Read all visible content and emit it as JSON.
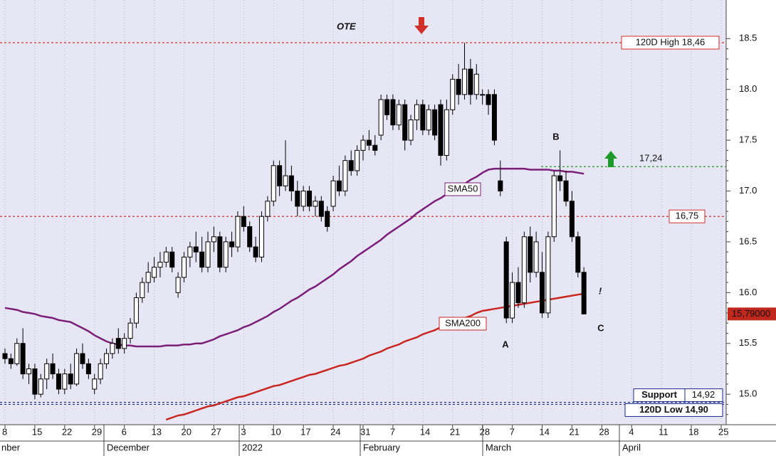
{
  "chart_data": {
    "type": "candlestick",
    "background": "#e6e6f5",
    "categories": [
      "8",
      null,
      null,
      null,
      null,
      "15",
      null,
      null,
      null,
      null,
      "22",
      null,
      null,
      null,
      null,
      "29",
      null,
      null,
      null,
      null,
      "6",
      null,
      null,
      null,
      null,
      "13",
      null,
      null,
      null,
      null,
      "20",
      null,
      null,
      null,
      null,
      "27",
      null,
      null,
      null,
      null,
      "3",
      null,
      null,
      null,
      null,
      "10",
      null,
      null,
      null,
      null,
      "17",
      null,
      null,
      null,
      null,
      "24",
      null,
      null,
      null,
      null,
      "31",
      null,
      null,
      null,
      null,
      "7",
      null,
      null,
      null,
      null,
      "14",
      null,
      null,
      null,
      null,
      "21",
      null,
      null,
      null,
      null,
      "28",
      null,
      null,
      null,
      null,
      "7",
      null,
      null,
      null,
      null,
      "14",
      null,
      null,
      null,
      null,
      "21",
      null,
      null,
      null,
      null,
      "28",
      null,
      null,
      null,
      null,
      "4",
      null,
      null,
      null,
      null,
      "11",
      null,
      null,
      null,
      null,
      "18",
      null,
      null,
      null,
      null,
      "25"
    ],
    "months": [
      "nber",
      "December",
      "2022",
      "February",
      "March",
      "April"
    ],
    "ohlc": [
      [
        15.4,
        15.45,
        15.3,
        15.35
      ],
      [
        15.35,
        15.4,
        15.25,
        15.3
      ],
      [
        15.3,
        15.55,
        15.28,
        15.5
      ],
      [
        15.5,
        15.65,
        15.15,
        15.2
      ],
      [
        15.2,
        15.3,
        15.1,
        15.25
      ],
      [
        15.25,
        15.3,
        14.95,
        15.0
      ],
      [
        15.0,
        15.2,
        14.97,
        15.15
      ],
      [
        15.15,
        15.35,
        15.05,
        15.3
      ],
      [
        15.3,
        15.4,
        15.15,
        15.2
      ],
      [
        15.2,
        15.25,
        15.0,
        15.05
      ],
      [
        15.05,
        15.25,
        15.0,
        15.2
      ],
      [
        15.2,
        15.3,
        15.05,
        15.1
      ],
      [
        15.1,
        15.45,
        15.08,
        15.4
      ],
      [
        15.4,
        15.5,
        15.25,
        15.3
      ],
      [
        15.3,
        15.35,
        15.15,
        15.2
      ],
      [
        15.05,
        15.2,
        15.0,
        15.15
      ],
      [
        15.15,
        15.35,
        15.1,
        15.3
      ],
      [
        15.3,
        15.45,
        15.25,
        15.4
      ],
      [
        15.4,
        15.55,
        15.35,
        15.5
      ],
      [
        15.55,
        15.65,
        15.4,
        15.45
      ],
      [
        15.45,
        15.6,
        15.4,
        15.55
      ],
      [
        15.55,
        15.75,
        15.5,
        15.7
      ],
      [
        15.7,
        16.0,
        15.65,
        15.95
      ],
      [
        15.95,
        16.15,
        15.9,
        16.1
      ],
      [
        16.1,
        16.3,
        16.0,
        16.2
      ],
      [
        16.15,
        16.35,
        16.1,
        16.25
      ],
      [
        16.25,
        16.4,
        16.15,
        16.3
      ],
      [
        16.3,
        16.45,
        16.25,
        16.4
      ],
      [
        16.4,
        16.45,
        16.2,
        16.25
      ],
      [
        16.0,
        16.2,
        15.95,
        16.15
      ],
      [
        16.15,
        16.4,
        16.1,
        16.35
      ],
      [
        16.35,
        16.5,
        16.25,
        16.45
      ],
      [
        16.45,
        16.6,
        16.3,
        16.4
      ],
      [
        16.4,
        16.55,
        16.2,
        16.25
      ],
      [
        16.25,
        16.6,
        16.2,
        16.5
      ],
      [
        16.5,
        16.65,
        16.4,
        16.55
      ],
      [
        16.55,
        16.6,
        16.2,
        16.25
      ],
      [
        16.25,
        16.55,
        16.2,
        16.5
      ],
      [
        16.5,
        16.6,
        16.35,
        16.45
      ],
      [
        16.45,
        16.8,
        16.4,
        16.75
      ],
      [
        16.75,
        16.85,
        16.6,
        16.65
      ],
      [
        16.65,
        16.7,
        16.4,
        16.45
      ],
      [
        16.45,
        16.55,
        16.3,
        16.35
      ],
      [
        16.35,
        16.8,
        16.3,
        16.75
      ],
      [
        16.75,
        16.95,
        16.7,
        16.9
      ],
      [
        16.9,
        17.3,
        16.85,
        17.25
      ],
      [
        17.25,
        17.3,
        16.95,
        17.05
      ],
      [
        17.05,
        17.5,
        17.0,
        17.15
      ],
      [
        17.15,
        17.25,
        16.9,
        17.0
      ],
      [
        17.0,
        17.1,
        16.75,
        16.85
      ],
      [
        16.85,
        17.05,
        16.8,
        17.0
      ],
      [
        17.0,
        17.05,
        16.8,
        16.85
      ],
      [
        16.85,
        16.95,
        16.75,
        16.9
      ],
      [
        16.9,
        16.95,
        16.7,
        16.75
      ],
      [
        16.8,
        16.85,
        16.6,
        16.65
      ],
      [
        16.85,
        17.15,
        16.8,
        17.1
      ],
      [
        17.1,
        17.25,
        16.95,
        17.0
      ],
      [
        17.0,
        17.35,
        16.95,
        17.3
      ],
      [
        17.3,
        17.4,
        17.15,
        17.2
      ],
      [
        17.2,
        17.45,
        17.15,
        17.4
      ],
      [
        17.4,
        17.55,
        17.3,
        17.5
      ],
      [
        17.5,
        17.6,
        17.4,
        17.45
      ],
      [
        17.45,
        17.55,
        17.35,
        17.4
      ],
      [
        17.55,
        17.95,
        17.5,
        17.9
      ],
      [
        17.9,
        17.95,
        17.7,
        17.75
      ],
      [
        17.9,
        17.95,
        17.6,
        17.65
      ],
      [
        17.65,
        17.9,
        17.6,
        17.85
      ],
      [
        17.85,
        17.9,
        17.4,
        17.5
      ],
      [
        17.5,
        17.75,
        17.45,
        17.7
      ],
      [
        17.7,
        17.9,
        17.6,
        17.85
      ],
      [
        17.85,
        17.9,
        17.55,
        17.6
      ],
      [
        17.6,
        17.85,
        17.55,
        17.8
      ],
      [
        17.8,
        17.85,
        17.5,
        17.55
      ],
      [
        17.85,
        17.9,
        17.25,
        17.35
      ],
      [
        17.35,
        17.9,
        17.3,
        17.8
      ],
      [
        17.8,
        18.15,
        17.75,
        18.1
      ],
      [
        18.1,
        18.25,
        17.85,
        17.95
      ],
      [
        17.95,
        18.46,
        17.9,
        18.2
      ],
      [
        18.2,
        18.3,
        17.85,
        17.95
      ],
      [
        17.95,
        18.25,
        17.9,
        18.15
      ],
      [
        17.95,
        18.0,
        17.85,
        17.95
      ],
      [
        17.95,
        18.0,
        17.75,
        17.85
      ],
      [
        17.95,
        18.0,
        17.45,
        17.5
      ],
      [
        17.1,
        17.3,
        16.95,
        17.0
      ],
      [
        16.5,
        16.55,
        15.7,
        15.75
      ],
      [
        15.75,
        16.2,
        15.7,
        16.1
      ],
      [
        16.1,
        16.25,
        15.85,
        15.9
      ],
      [
        15.9,
        16.6,
        15.85,
        16.55
      ],
      [
        16.55,
        16.65,
        16.1,
        16.2
      ],
      [
        16.2,
        16.6,
        16.15,
        16.5
      ],
      [
        16.2,
        16.4,
        15.75,
        15.8
      ],
      [
        15.8,
        16.6,
        15.75,
        16.55
      ],
      [
        16.55,
        17.2,
        16.5,
        17.15
      ],
      [
        17.15,
        17.4,
        17.0,
        17.1
      ],
      [
        17.1,
        17.2,
        16.85,
        16.9
      ],
      [
        16.9,
        17.0,
        16.5,
        16.55
      ],
      [
        16.55,
        16.6,
        16.15,
        16.2
      ],
      [
        16.2,
        16.25,
        15.8,
        15.79
      ],
      null,
      null,
      null,
      null,
      null,
      null,
      null,
      null,
      null,
      null,
      null,
      null,
      null,
      null,
      null,
      null,
      null,
      null,
      null,
      null,
      null,
      null,
      null
    ],
    "up_color": "#ffffff",
    "down_color": "#000000",
    "series": [
      {
        "name": "SMA50",
        "color": "#7a1e78",
        "values": [
          15.85,
          15.84,
          15.83,
          15.81,
          15.8,
          15.79,
          15.77,
          15.76,
          15.75,
          15.73,
          15.72,
          15.71,
          15.68,
          15.65,
          15.62,
          15.58,
          15.55,
          15.52,
          15.5,
          15.49,
          15.48,
          15.48,
          15.47,
          15.47,
          15.47,
          15.47,
          15.47,
          15.48,
          15.48,
          15.48,
          15.49,
          15.49,
          15.5,
          15.5,
          15.52,
          15.54,
          15.57,
          15.59,
          15.61,
          15.63,
          15.66,
          15.68,
          15.71,
          15.74,
          15.77,
          15.81,
          15.84,
          15.88,
          15.92,
          15.95,
          15.99,
          16.03,
          16.06,
          16.1,
          16.14,
          16.18,
          16.23,
          16.27,
          16.31,
          16.36,
          16.4,
          16.44,
          16.48,
          16.52,
          16.57,
          16.61,
          16.65,
          16.69,
          16.73,
          16.78,
          16.82,
          16.86,
          16.9,
          16.93,
          16.97,
          17.0,
          17.04,
          17.07,
          17.11,
          17.14,
          17.18,
          17.21,
          17.22,
          17.22,
          17.22,
          17.22,
          17.22,
          17.22,
          17.21,
          17.21,
          17.21,
          17.21,
          17.2,
          17.2,
          17.19,
          17.19,
          17.18,
          17.17,
          null,
          null,
          null,
          null,
          null,
          null,
          null,
          null,
          null,
          null,
          null,
          null,
          null,
          null,
          null,
          null,
          null,
          null,
          null,
          null,
          null,
          null,
          null
        ]
      },
      {
        "name": "SMA200",
        "color": "#c8261e",
        "values": [
          null,
          null,
          null,
          null,
          null,
          null,
          null,
          null,
          null,
          null,
          null,
          null,
          null,
          null,
          null,
          null,
          null,
          null,
          null,
          null,
          null,
          null,
          null,
          null,
          null,
          null,
          null,
          14.75,
          14.77,
          14.79,
          14.8,
          14.82,
          14.84,
          14.86,
          14.88,
          14.89,
          14.91,
          14.93,
          14.95,
          14.97,
          14.98,
          15.0,
          15.02,
          15.04,
          15.06,
          15.08,
          15.09,
          15.11,
          15.13,
          15.15,
          15.17,
          15.19,
          15.2,
          15.22,
          15.24,
          15.26,
          15.28,
          15.29,
          15.31,
          15.33,
          15.35,
          15.38,
          15.4,
          15.42,
          15.45,
          15.47,
          15.49,
          15.52,
          15.54,
          15.56,
          15.59,
          15.61,
          15.63,
          15.66,
          15.68,
          15.7,
          15.73,
          15.75,
          15.77,
          15.8,
          15.82,
          15.83,
          15.84,
          15.85,
          15.86,
          15.87,
          15.88,
          15.89,
          15.9,
          15.91,
          15.92,
          15.93,
          15.94,
          15.95,
          15.96,
          15.97,
          15.98,
          15.99,
          null,
          null,
          null,
          null,
          null,
          null,
          null,
          null,
          null,
          null,
          null,
          null,
          null,
          null,
          null,
          null,
          null,
          null,
          null,
          null,
          null,
          null,
          null
        ]
      }
    ],
    "levels": [
      {
        "label": "120D High 18,46",
        "value": 18.46,
        "color": "#d0302a"
      },
      {
        "label": "16,75",
        "value": 16.75,
        "color": "#d0302a"
      },
      {
        "label": "17,24",
        "value": 17.24,
        "color": "#1e9a2a"
      },
      {
        "label": "Support",
        "value": 14.92,
        "value_label": "14,92",
        "color": "#1a2a8a"
      },
      {
        "label": "120D Low 14,90",
        "value": 14.9,
        "color": "#1a2a8a"
      }
    ],
    "last_price": {
      "value": 15.79,
      "label": "15,79000"
    },
    "annotations": [
      "OTE",
      "B",
      "A",
      "C",
      "!"
    ],
    "ylim": [
      14.7,
      18.88
    ],
    "yticks": [
      {
        "value": 15,
        "label": "15.0"
      },
      15.5,
      {
        "value": 16,
        "label": "16.0"
      },
      16.5,
      {
        "value": 17,
        "label": "17.0"
      },
      17.5,
      {
        "value": 18,
        "label": "18.0"
      },
      18.5
    ],
    "grid": true
  }
}
